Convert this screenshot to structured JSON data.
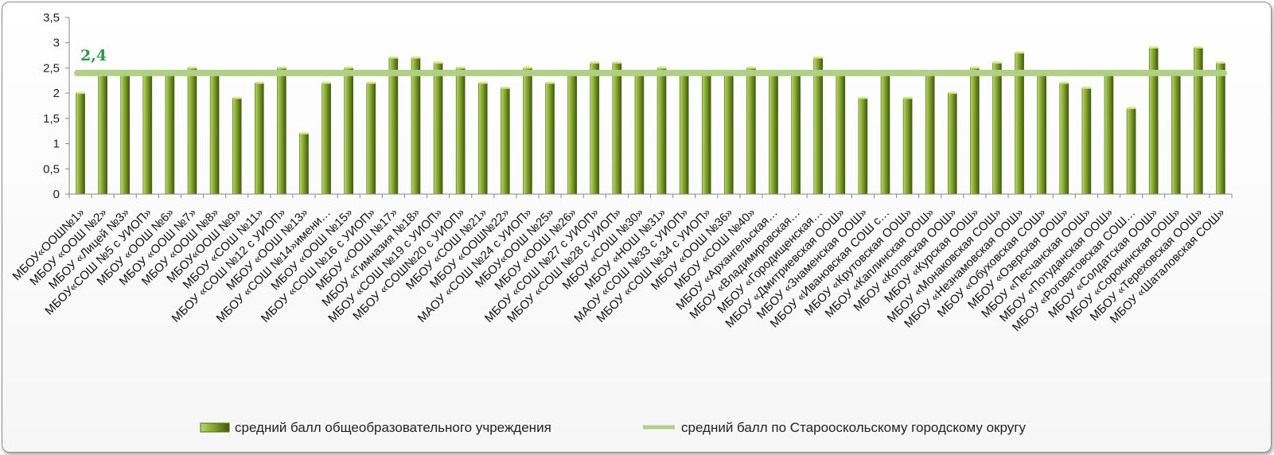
{
  "chart_data": {
    "type": "bar",
    "ylim": [
      0,
      3.5
    ],
    "yticks": [
      "0",
      "0,5",
      "1",
      "1,5",
      "2",
      "2,5",
      "3",
      "3,5"
    ],
    "categories": [
      "МБОУ«ООШ№1»",
      "МБОУ «ООШ №2»",
      "МБОУ «Лицей №3»",
      "МБОУ«СОШ №5 с УИОП»",
      "МБОУ «ООШ №6»",
      "МБОУ «ООШ №7»",
      "МБОУ «ООШ №8»",
      "МБОУ«ООШ №9»",
      "МБОУ «СОШ №11»",
      "МБОУ «СОШ №12 с УИОП»",
      "МБОУ «ООШ №13»",
      "МБОУ «СОШ №14»имени…",
      "МБОУ «ООШ №15»",
      "МБОУ «СОШ №16 с УИОП»",
      "МБОУ «ООШ №17»",
      "МБОУ «Гимназия №18»",
      "МБОУ «СОШ №19 с УИОП»",
      "МБОУ «СОШ№20 с УИОП»",
      "МБОУ «СОШ №21»",
      "МБОУ «ООШ№22»",
      "МАОУ «СОШ №24 с УИОП»",
      "МБОУ«ООШ №25»",
      "МБОУ «ООШ №26»",
      "МБОУ «СОШ №27 с УИОП»",
      "МБОУ «СОШ №28 с УИОП»",
      "МБОУ «СОШ №30»",
      "МБОУ «НОШ №31»",
      "МАОУ «СОШ №33 с УИОП»",
      "МБОУ «СОШ №34 с УИОП»",
      "МБОУ «ООШ №36»",
      "МБОУ «СОШ №40»",
      "МБОУ «Архангельская…",
      "МБОУ «Владимировская…",
      "МБОУ «Городищенская…",
      "МБОУ «Дмитриевская ООШ»",
      "МБОУ «Знаменская ООШ»",
      "МБОУ «Ивановская СОШ с…",
      "МБОУ «Крутовская ООШ»",
      "МБОУ «Каплинская ООШ»",
      "МБОУ «Котовская ООШ»",
      "МБОУ «Курская ООШ»",
      "МБОУ «Монаковская СОШ»",
      "МБОУ «Незнамовская ООШ»",
      "МБОУ «Обуховская СОШ»",
      "МБОУ «Озерская ООШ»",
      "МБОУ «Песчанская ООШ»",
      "МБОУ «Потуданская ООШ»",
      "МБОУ «Роговатовская СОШ…",
      "МБОУ «Солдатская ООШ»",
      "МБОУ «Сорокинская ООШ»",
      "МБОУ «Тереховская ООШ»",
      "МБОУ «Шаталовская СОШ»"
    ],
    "series": [
      {
        "name": "средний балл общеобразовательного учреждения",
        "values": [
          2.0,
          2.4,
          2.4,
          2.4,
          2.4,
          2.5,
          2.4,
          1.9,
          2.2,
          2.5,
          1.2,
          2.2,
          2.5,
          2.2,
          2.7,
          2.7,
          2.6,
          2.5,
          2.2,
          2.1,
          2.5,
          2.2,
          2.4,
          2.6,
          2.6,
          2.4,
          2.5,
          2.4,
          2.4,
          2.4,
          2.5,
          2.4,
          2.4,
          2.7,
          2.4,
          1.9,
          2.4,
          1.9,
          2.4,
          2.0,
          2.5,
          2.6,
          2.8,
          2.4,
          2.2,
          2.1,
          2.4,
          1.7,
          2.9,
          2.4,
          2.9,
          2.6
        ]
      },
      {
        "name": "средний балл по Старооскольскому городскому округу",
        "type": "line",
        "value": 2.4,
        "label": "2,4"
      }
    ],
    "legend": "bottom",
    "grid": false,
    "colors": {
      "bar_light": "#c7e07a",
      "bar_dark": "#4f6b12",
      "avg_line": "#b2cf86",
      "avg_label": "#2f9a46"
    }
  }
}
